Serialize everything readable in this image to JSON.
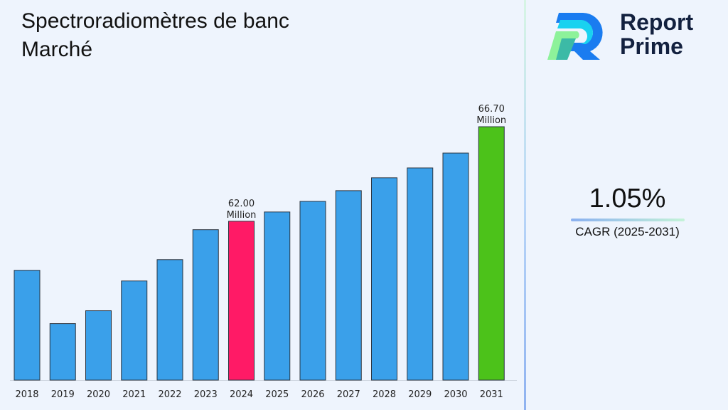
{
  "title": "Spectroradiomètres de banc Marché",
  "brand": {
    "line1": "Report",
    "line2": "Prime"
  },
  "cagr": {
    "value": "1.05%",
    "label": "CAGR (2025-2031)"
  },
  "colors": {
    "default_bar": "#3aa0ea",
    "highlight_2024": "#ff1a66",
    "highlight_2031": "#4cc21a"
  },
  "chart_data": {
    "type": "bar",
    "title": "",
    "xlabel": "",
    "ylabel": "",
    "categories": [
      "2018",
      "2019",
      "2020",
      "2021",
      "2022",
      "2023",
      "2024",
      "2025",
      "2026",
      "2027",
      "2028",
      "2029",
      "2030",
      "2031"
    ],
    "values": [
      59.56,
      56.91,
      57.55,
      59.03,
      60.09,
      61.58,
      62.0,
      62.46,
      62.99,
      63.52,
      64.16,
      64.65,
      65.39,
      66.7
    ],
    "ylim": [
      54.1,
      68.4
    ],
    "grid": false,
    "data_labels": [
      {
        "category": "2024",
        "line1": "62.00",
        "line2": "Million"
      },
      {
        "category": "2031",
        "line1": "66.70",
        "line2": "Million"
      }
    ]
  }
}
